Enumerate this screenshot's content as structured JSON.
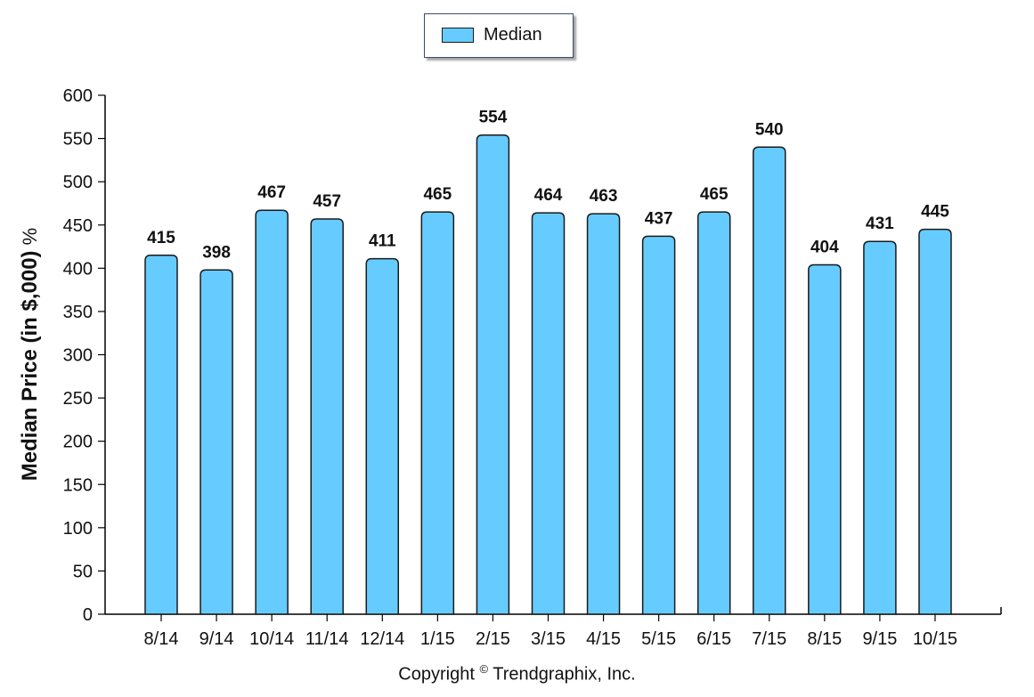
{
  "chart_data": {
    "type": "bar",
    "categories": [
      "8/14",
      "9/14",
      "10/14",
      "11/14",
      "12/14",
      "1/15",
      "2/15",
      "3/15",
      "4/15",
      "5/15",
      "6/15",
      "7/15",
      "8/15",
      "9/15",
      "10/15"
    ],
    "series": [
      {
        "name": "Median",
        "values": [
          415,
          398,
          467,
          457,
          411,
          465,
          554,
          464,
          463,
          437,
          465,
          540,
          404,
          431,
          445
        ]
      }
    ],
    "ylabel_main": "Median Price (in $,000)",
    "ylabel_suffix": "%",
    "ylim": [
      0,
      600
    ],
    "yticks": [
      0,
      50,
      100,
      150,
      200,
      250,
      300,
      350,
      400,
      450,
      500,
      550,
      600
    ],
    "grid": false,
    "legend_position": "top-center",
    "bar_color": "#66ccff",
    "data_labels": true
  },
  "footer": {
    "copyright_prefix": "Copyright",
    "copyright_symbol": "©",
    "copyright_rest": "Trendgraphix, Inc."
  }
}
